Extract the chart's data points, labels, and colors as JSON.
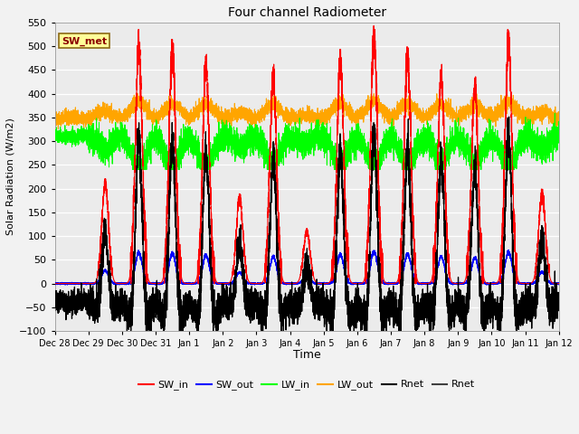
{
  "title": "Four channel Radiometer",
  "xlabel": "Time",
  "ylabel": "Solar Radiation (W/m2)",
  "ylim": [
    -100,
    550
  ],
  "annotation_text": "SW_met",
  "annotation_bg": "#FFFF99",
  "annotation_border": "#8B6914",
  "annotation_text_color": "#8B0000",
  "colors": {
    "SW_in": "#FF0000",
    "SW_out": "#0000FF",
    "LW_in": "#00FF00",
    "LW_out": "#FFA500",
    "Rnet_black": "#000000",
    "Rnet_dark": "#404040"
  },
  "legend_labels": [
    "SW_in",
    "SW_out",
    "LW_in",
    "LW_out",
    "Rnet",
    "Rnet"
  ],
  "x_tick_labels": [
    "Dec 28",
    "Dec 29",
    "Dec 30",
    "Dec 31",
    "Jan 1",
    "Jan 2",
    "Jan 3",
    "Jan 4",
    "Jan 5",
    "Jan 6",
    "Jan 7",
    "Jan 8",
    "Jan 9",
    "Jan 10",
    "Jan 11",
    "Jan 12"
  ],
  "num_days": 15,
  "fig_width": 6.4,
  "fig_height": 4.8,
  "dpi": 100
}
